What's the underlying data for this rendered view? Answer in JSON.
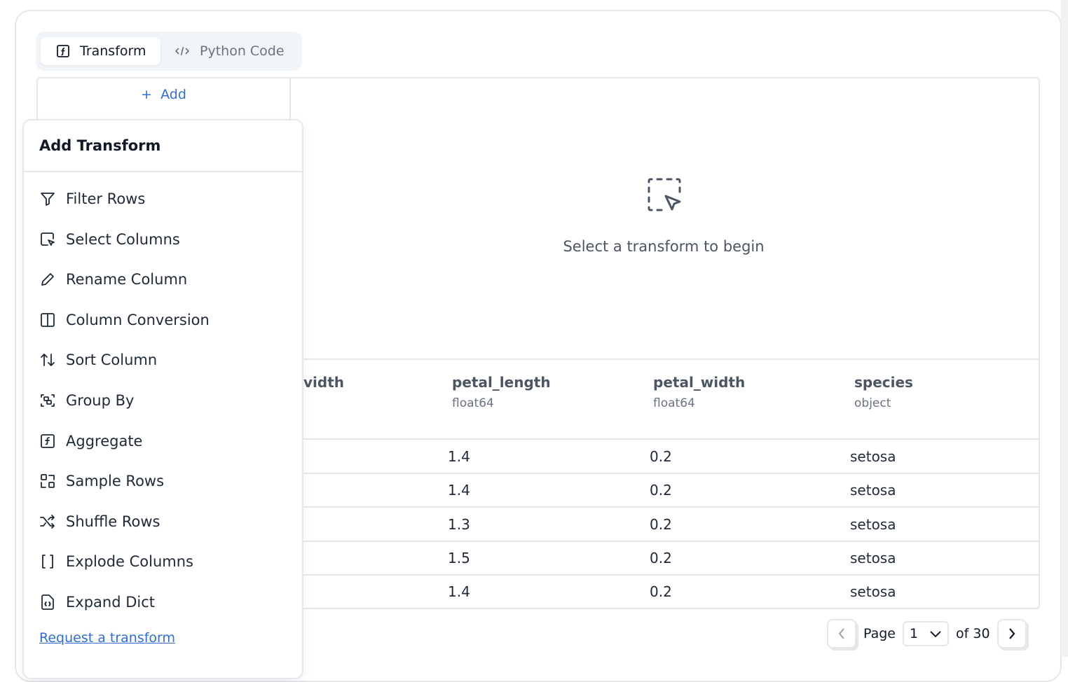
{
  "tabs": [
    {
      "label": "Transform",
      "icon": "function-icon",
      "active": true
    },
    {
      "label": "Python Code",
      "icon": "code-icon",
      "active": false
    }
  ],
  "sidebar": {
    "add_label": "Add"
  },
  "empty_state": {
    "icon": "dashed-select-cursor-icon",
    "text": "Select a transform to begin"
  },
  "table": {
    "columns": [
      {
        "name": "vidth",
        "dtype": ""
      },
      {
        "name": "petal_length",
        "dtype": "float64"
      },
      {
        "name": "petal_width",
        "dtype": "float64"
      },
      {
        "name": "species",
        "dtype": "object"
      }
    ],
    "rows": [
      [
        "1.4",
        "0.2",
        "setosa"
      ],
      [
        "1.4",
        "0.2",
        "setosa"
      ],
      [
        "1.3",
        "0.2",
        "setosa"
      ],
      [
        "1.5",
        "0.2",
        "setosa"
      ],
      [
        "1.4",
        "0.2",
        "setosa"
      ]
    ]
  },
  "popup": {
    "title": "Add Transform",
    "items": [
      {
        "label": "Filter Rows",
        "icon": "filter-icon"
      },
      {
        "label": "Select Columns",
        "icon": "select-columns-icon"
      },
      {
        "label": "Rename Column",
        "icon": "pencil-icon"
      },
      {
        "label": "Column Conversion",
        "icon": "columns-icon"
      },
      {
        "label": "Sort Column",
        "icon": "sort-arrows-icon"
      },
      {
        "label": "Group By",
        "icon": "group-icon"
      },
      {
        "label": "Aggregate",
        "icon": "function-icon"
      },
      {
        "label": "Sample Rows",
        "icon": "sample-icon"
      },
      {
        "label": "Shuffle Rows",
        "icon": "shuffle-icon"
      },
      {
        "label": "Explode Columns",
        "icon": "brackets-icon"
      },
      {
        "label": "Expand Dict",
        "icon": "file-braces-icon"
      }
    ],
    "request_link": "Request a transform"
  },
  "pager": {
    "page_label": "Page",
    "page": "1",
    "of_label": "of 30"
  }
}
